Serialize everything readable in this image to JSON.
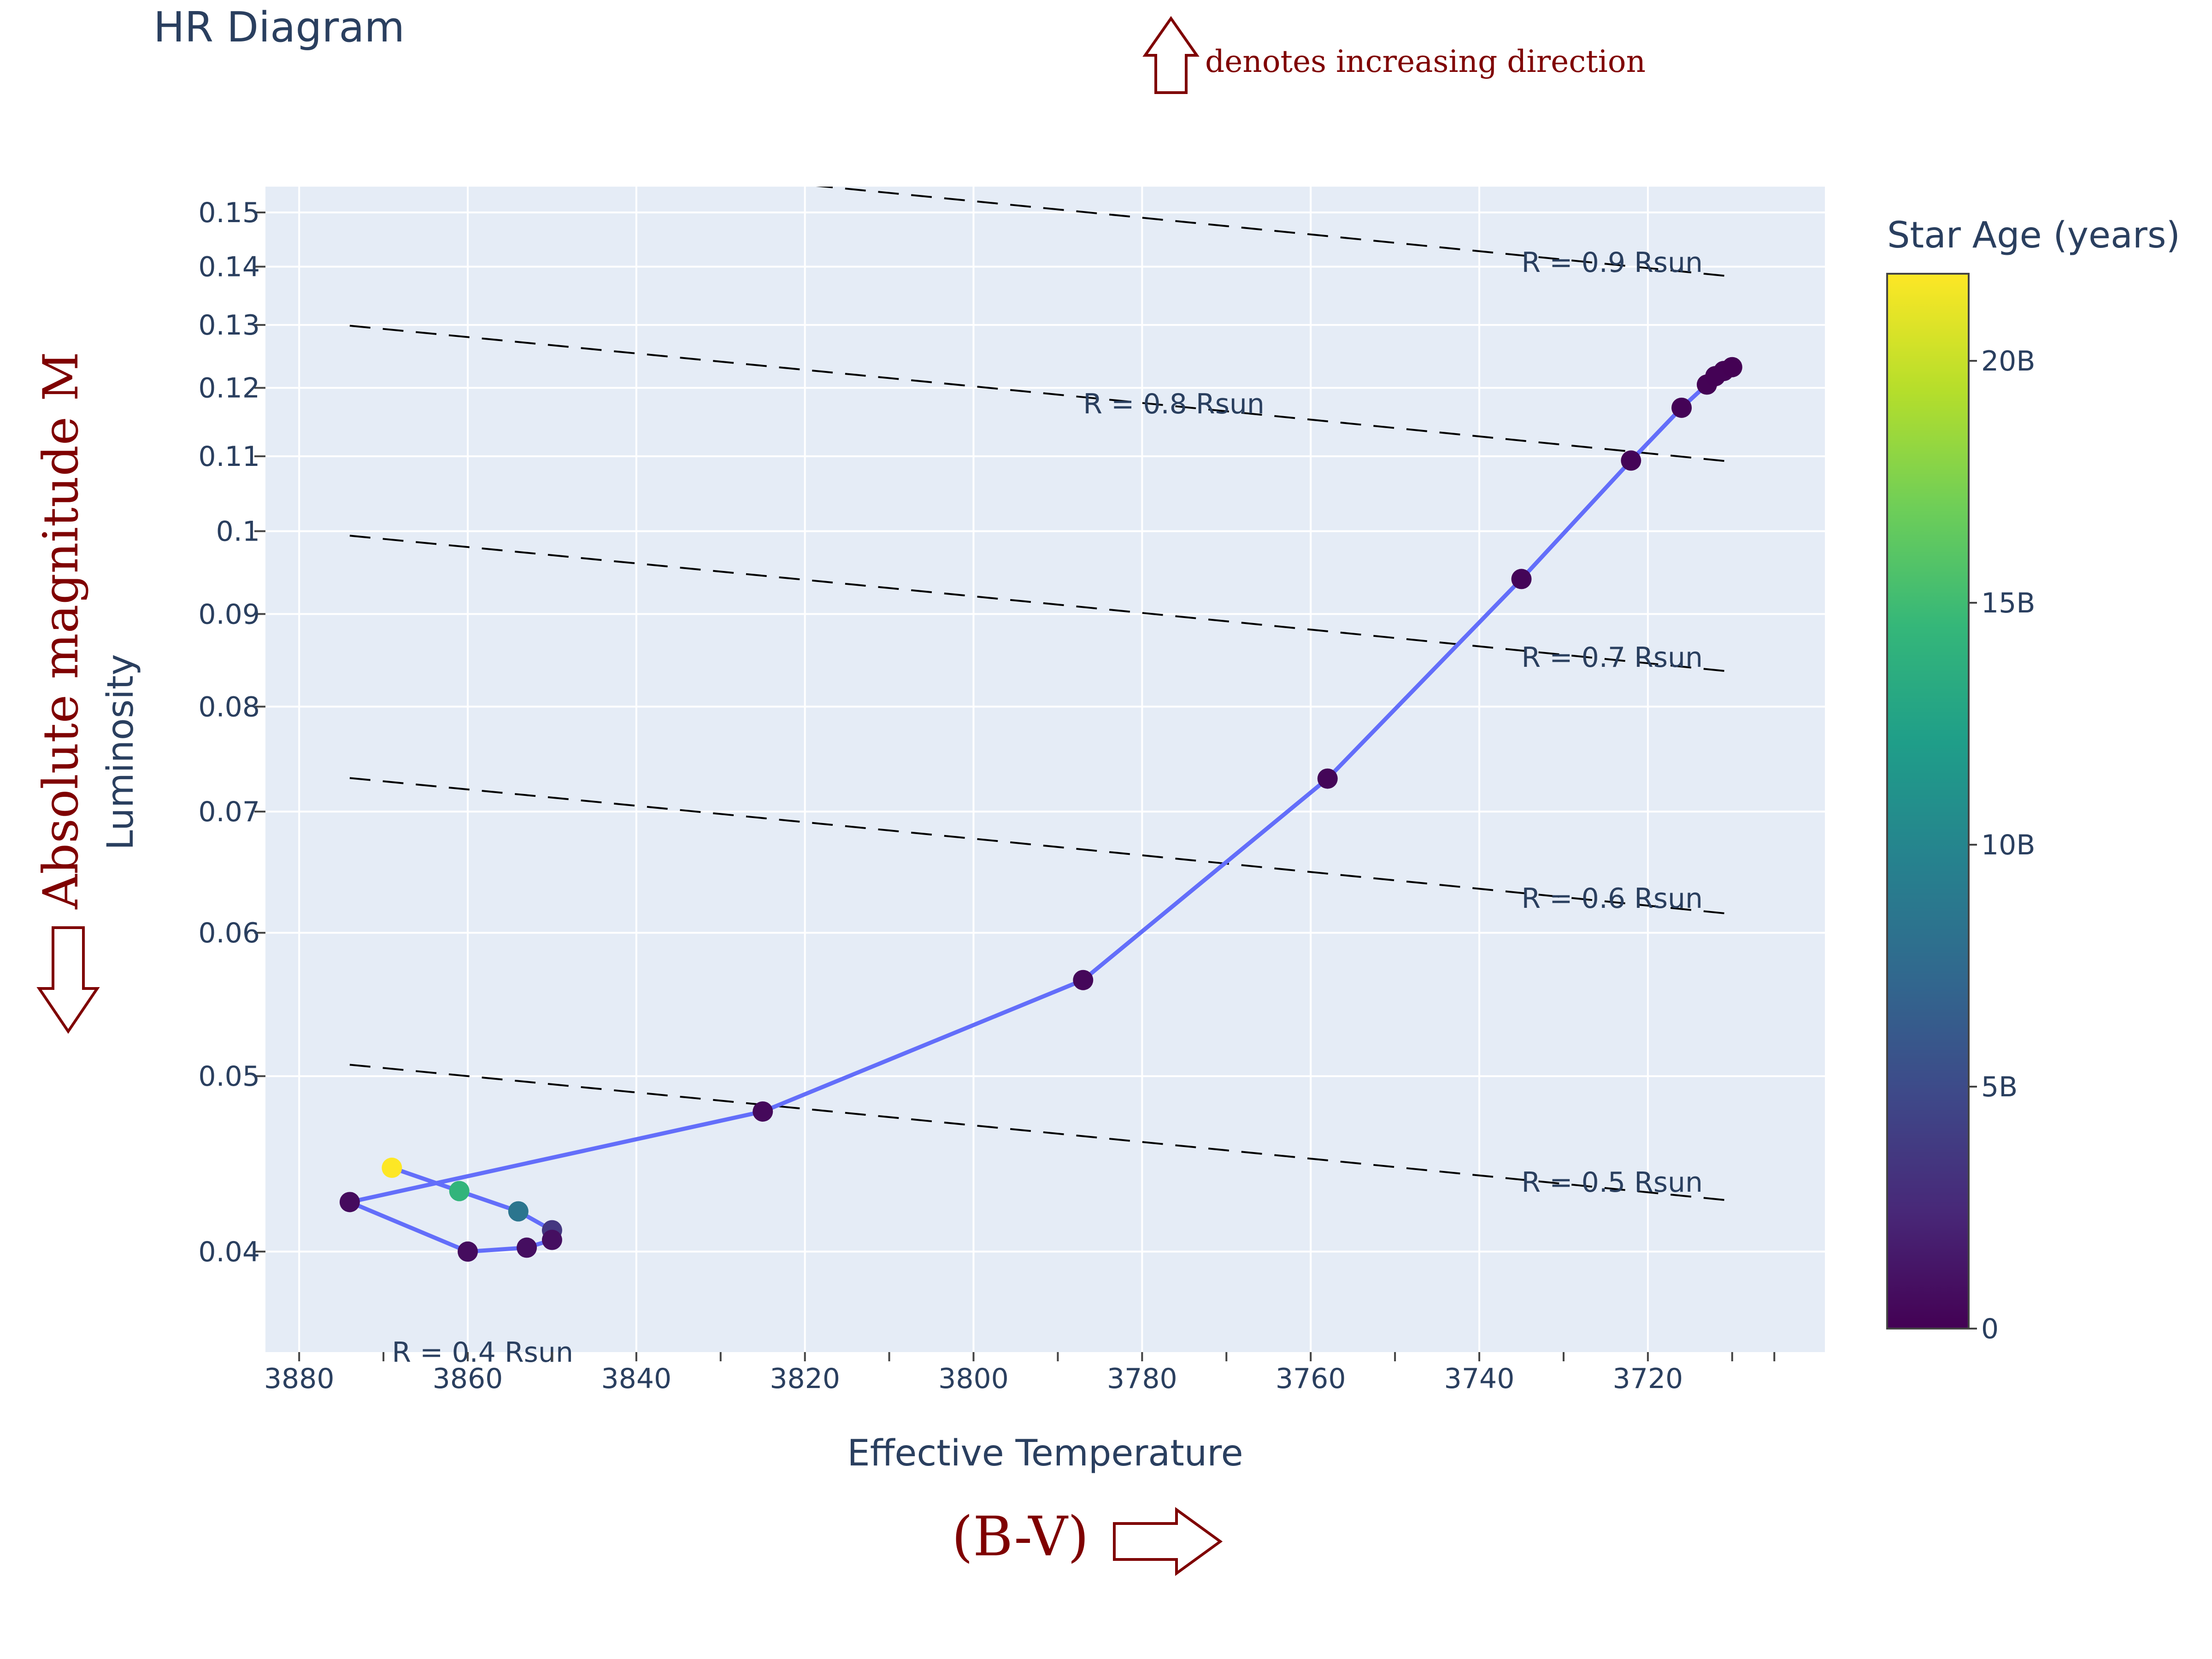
{
  "chart_data": {
    "type": "scatter",
    "title": "HR Diagram",
    "xlabel": "Effective Temperature",
    "ylabel": "Luminosity",
    "x_reversed": true,
    "y_scale": "log",
    "xlim": [
      3884,
      3699
    ],
    "ylim": [
      0.0352,
      0.155
    ],
    "grid": true,
    "x_ticks": [
      3880,
      3860,
      3840,
      3820,
      3800,
      3780,
      3760,
      3740,
      3720
    ],
    "x_tick_labels": [
      "3880",
      "3860",
      "3840",
      "3820",
      "3800",
      "3780",
      "3760",
      "3740",
      "3720"
    ],
    "x_minor_ticks": [
      3870,
      3850,
      3830,
      3810,
      3790,
      3770,
      3750,
      3730,
      3710,
      3705
    ],
    "y_ticks": [
      0.04,
      0.05,
      0.06,
      0.07,
      0.08,
      0.09,
      0.1,
      0.11,
      0.12,
      0.13,
      0.14,
      0.15
    ],
    "y_tick_labels": [
      "0.04",
      "0.05",
      "0.06",
      "0.07",
      "0.08",
      "0.09",
      "0.1",
      "0.11",
      "0.12",
      "0.13",
      "0.14",
      "0.15"
    ],
    "series": [
      {
        "color": "#636efa",
        "points": [
          {
            "x": 3869,
            "y": 0.0445,
            "age": 21.8
          },
          {
            "x": 3861,
            "y": 0.0432,
            "age": 14.2
          },
          {
            "x": 3854,
            "y": 0.0421,
            "age": 8.5
          },
          {
            "x": 3850,
            "y": 0.0411,
            "age": 3.5
          },
          {
            "x": 3850,
            "y": 0.0406,
            "age": 0.9
          },
          {
            "x": 3853,
            "y": 0.0402,
            "age": 0.8
          },
          {
            "x": 3860,
            "y": 0.04,
            "age": 0.7
          },
          {
            "x": 3874,
            "y": 0.0426,
            "age": 0.6
          },
          {
            "x": 3825,
            "y": 0.0478,
            "age": 0.5
          },
          {
            "x": 3787,
            "y": 0.0565,
            "age": 0.4
          },
          {
            "x": 3758,
            "y": 0.073,
            "age": 0.3
          },
          {
            "x": 3735,
            "y": 0.0941,
            "age": 0.25
          },
          {
            "x": 3722,
            "y": 0.1094,
            "age": 0.2
          },
          {
            "x": 3716,
            "y": 0.117,
            "age": 0.15
          },
          {
            "x": 3713,
            "y": 0.1205,
            "age": 0.1
          },
          {
            "x": 3712,
            "y": 0.1218,
            "age": 0.08
          },
          {
            "x": 3711,
            "y": 0.1226,
            "age": 0.05
          },
          {
            "x": 3710,
            "y": 0.1232,
            "age": 0.02
          }
        ]
      }
    ],
    "radius_lines": [
      {
        "label": "R = 0.4 Rsun",
        "R": 0.4,
        "label_x": 3869,
        "label_y": 0.0352
      },
      {
        "label": "R = 0.5 Rsun",
        "R": 0.5,
        "label_x": 3735,
        "label_y": 0.0437
      },
      {
        "label": "R = 0.6 Rsun",
        "R": 0.6,
        "label_x": 3735,
        "label_y": 0.0627
      },
      {
        "label": "R = 0.7 Rsun",
        "R": 0.7,
        "label_x": 3735,
        "label_y": 0.0852
      },
      {
        "label": "R = 0.8 Rsun",
        "R": 0.8,
        "label_x": 3787,
        "label_y": 0.1176
      },
      {
        "label": "R = 0.9 Rsun",
        "R": 0.9,
        "label_x": 3735,
        "label_y": 0.1408
      }
    ],
    "colorbar": {
      "title": "Star Age (years)",
      "range": [
        0,
        21.8
      ],
      "ticks": [
        0,
        5,
        10,
        15,
        20
      ],
      "tick_labels": [
        "0",
        "5B",
        "10B",
        "15B",
        "20B"
      ],
      "colorscale": [
        "#440154",
        "#482878",
        "#3e4989",
        "#31688e",
        "#26828e",
        "#1f9e89",
        "#35b779",
        "#6ece58",
        "#b5de2b",
        "#fde725"
      ]
    },
    "annotations": {
      "direction_note": "denotes increasing direction",
      "y_direction_label": "Absolute magnitude M",
      "x_direction_label": "(B-V)"
    }
  }
}
